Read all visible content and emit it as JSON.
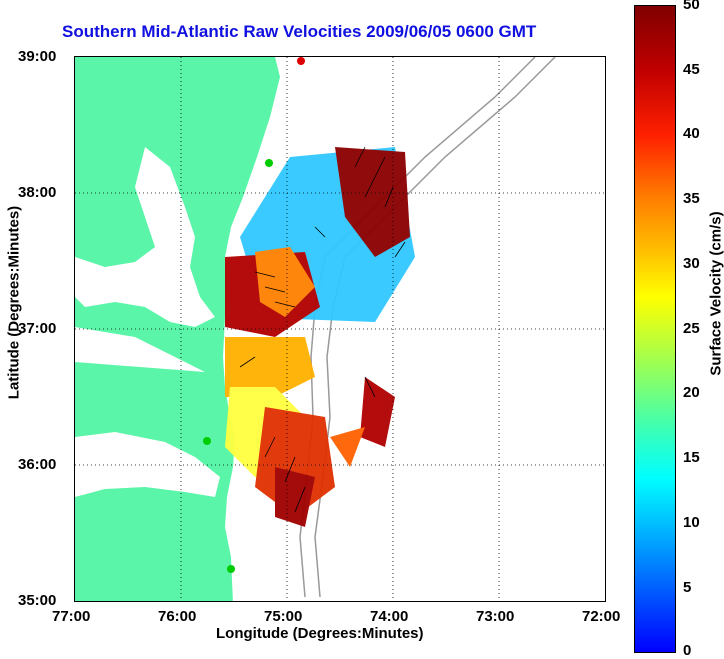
{
  "title": "Southern Mid-Atlantic Raw Velocities 2009/06/05 0600 GMT",
  "axes": {
    "ylabel": "Latitude (Degrees:Minutes)",
    "xlabel": "Longitude (Degrees:Minutes)",
    "yticks": [
      "39:00",
      "38:00",
      "37:00",
      "36:00",
      "35:00"
    ],
    "xticks": [
      "77:00",
      "76:00",
      "75:00",
      "74:00",
      "73:00",
      "72:00"
    ]
  },
  "colorbar": {
    "label": "Surface Velocity (cm/s)",
    "ticks": [
      "50",
      "45",
      "40",
      "35",
      "30",
      "25",
      "20",
      "15",
      "10",
      "5",
      "0"
    ],
    "min": 0,
    "max": 50,
    "colors": [
      "#0000ff",
      "#00ffff",
      "#ffff00",
      "#ff8000",
      "#ff0000",
      "#800000"
    ]
  },
  "map": {
    "land_color": "#5af5a8",
    "water_color": "#ffffff",
    "station_color": "#00cc00",
    "lon_range": [
      -77,
      -72
    ],
    "lat_range": [
      35,
      39
    ]
  }
}
